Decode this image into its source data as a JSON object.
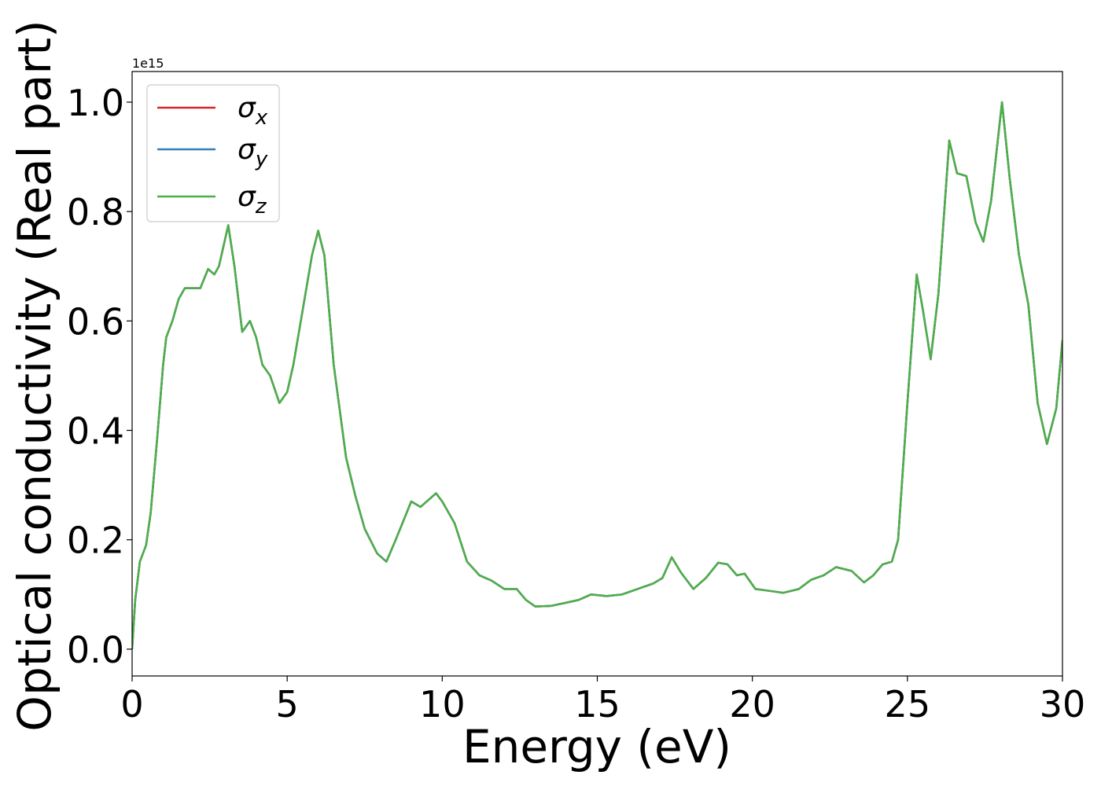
{
  "chart_data": {
    "type": "line",
    "x_label": "Energy (eV)",
    "y_label": "Optical conductivity (Real part)",
    "y_offset_label": "1e15",
    "x": [
      0,
      0.1,
      0.25,
      0.45,
      0.6,
      0.8,
      1.0,
      1.1,
      1.3,
      1.5,
      1.7,
      2.0,
      2.2,
      2.45,
      2.65,
      2.8,
      3.1,
      3.3,
      3.55,
      3.8,
      4.0,
      4.2,
      4.45,
      4.75,
      5.0,
      5.2,
      5.5,
      5.8,
      6.0,
      6.2,
      6.5,
      6.9,
      7.2,
      7.5,
      7.9,
      8.2,
      8.5,
      9.0,
      9.3,
      9.5,
      9.8,
      10.0,
      10.4,
      10.8,
      11.2,
      11.6,
      12.0,
      12.4,
      12.7,
      13.0,
      13.5,
      14.0,
      14.4,
      14.8,
      15.3,
      15.8,
      16.3,
      16.8,
      17.1,
      17.4,
      17.7,
      18.1,
      18.5,
      18.9,
      19.2,
      19.5,
      19.75,
      20.1,
      20.5,
      21.0,
      21.5,
      21.9,
      22.3,
      22.7,
      23.2,
      23.6,
      23.9,
      24.2,
      24.5,
      24.7,
      25.0,
      25.3,
      25.5,
      25.75,
      26.0,
      26.35,
      26.6,
      26.9,
      27.2,
      27.45,
      27.7,
      28.05,
      28.3,
      28.6,
      28.9,
      29.2,
      29.5,
      29.8,
      30.0
    ],
    "series": [
      {
        "name": "σx",
        "color": "#d62728",
        "values": [
          0,
          0.09,
          0.16,
          0.19,
          0.25,
          0.38,
          0.52,
          0.57,
          0.6,
          0.64,
          0.66,
          0.66,
          0.66,
          0.695,
          0.685,
          0.7,
          0.775,
          0.7,
          0.58,
          0.6,
          0.57,
          0.52,
          0.5,
          0.45,
          0.47,
          0.52,
          0.62,
          0.72,
          0.765,
          0.72,
          0.52,
          0.35,
          0.28,
          0.22,
          0.175,
          0.16,
          0.2,
          0.27,
          0.26,
          0.27,
          0.285,
          0.27,
          0.23,
          0.16,
          0.135,
          0.125,
          0.11,
          0.11,
          0.09,
          0.078,
          0.079,
          0.085,
          0.09,
          0.1,
          0.097,
          0.1,
          0.11,
          0.12,
          0.13,
          0.168,
          0.14,
          0.11,
          0.13,
          0.158,
          0.155,
          0.135,
          0.138,
          0.11,
          0.107,
          0.103,
          0.11,
          0.127,
          0.135,
          0.15,
          0.143,
          0.122,
          0.135,
          0.155,
          0.16,
          0.2,
          0.45,
          0.685,
          0.62,
          0.53,
          0.65,
          0.93,
          0.87,
          0.865,
          0.78,
          0.745,
          0.82,
          1.0,
          0.86,
          0.72,
          0.63,
          0.45,
          0.375,
          0.44,
          0.565
        ]
      },
      {
        "name": "σy",
        "color": "#377eb8",
        "values": [
          0,
          0.09,
          0.16,
          0.19,
          0.25,
          0.38,
          0.52,
          0.57,
          0.6,
          0.64,
          0.66,
          0.66,
          0.66,
          0.695,
          0.685,
          0.7,
          0.775,
          0.7,
          0.58,
          0.6,
          0.57,
          0.52,
          0.5,
          0.45,
          0.47,
          0.52,
          0.62,
          0.72,
          0.765,
          0.72,
          0.52,
          0.35,
          0.28,
          0.22,
          0.175,
          0.16,
          0.2,
          0.27,
          0.26,
          0.27,
          0.285,
          0.27,
          0.23,
          0.16,
          0.135,
          0.125,
          0.11,
          0.11,
          0.09,
          0.078,
          0.079,
          0.085,
          0.09,
          0.1,
          0.097,
          0.1,
          0.11,
          0.12,
          0.13,
          0.168,
          0.14,
          0.11,
          0.13,
          0.158,
          0.155,
          0.135,
          0.138,
          0.11,
          0.107,
          0.103,
          0.11,
          0.127,
          0.135,
          0.15,
          0.143,
          0.122,
          0.135,
          0.155,
          0.16,
          0.2,
          0.45,
          0.685,
          0.62,
          0.53,
          0.65,
          0.93,
          0.87,
          0.865,
          0.78,
          0.745,
          0.82,
          1.0,
          0.86,
          0.72,
          0.63,
          0.45,
          0.375,
          0.44,
          0.565
        ]
      },
      {
        "name": "σz",
        "color": "#4daf4a",
        "values": [
          0,
          0.09,
          0.16,
          0.19,
          0.25,
          0.38,
          0.52,
          0.57,
          0.6,
          0.64,
          0.66,
          0.66,
          0.66,
          0.695,
          0.685,
          0.7,
          0.775,
          0.7,
          0.58,
          0.6,
          0.57,
          0.52,
          0.5,
          0.45,
          0.47,
          0.52,
          0.62,
          0.72,
          0.765,
          0.72,
          0.52,
          0.35,
          0.28,
          0.22,
          0.175,
          0.16,
          0.2,
          0.27,
          0.26,
          0.27,
          0.285,
          0.27,
          0.23,
          0.16,
          0.135,
          0.125,
          0.11,
          0.11,
          0.09,
          0.078,
          0.079,
          0.085,
          0.09,
          0.1,
          0.097,
          0.1,
          0.11,
          0.12,
          0.13,
          0.168,
          0.14,
          0.11,
          0.13,
          0.158,
          0.155,
          0.135,
          0.138,
          0.11,
          0.107,
          0.103,
          0.11,
          0.127,
          0.135,
          0.15,
          0.143,
          0.122,
          0.135,
          0.155,
          0.16,
          0.2,
          0.45,
          0.685,
          0.62,
          0.53,
          0.65,
          0.93,
          0.87,
          0.865,
          0.78,
          0.745,
          0.82,
          1.0,
          0.86,
          0.72,
          0.63,
          0.45,
          0.375,
          0.44,
          0.565
        ]
      }
    ],
    "xlim": [
      0,
      30
    ],
    "xticks": [
      0,
      5,
      10,
      15,
      20,
      25,
      30
    ],
    "ylim": [
      -0.049,
      1.056
    ],
    "yticks": [
      {
        "value": 0,
        "label": "0.0"
      },
      0.2,
      0.4,
      0.6,
      0.8,
      {
        "value": 1,
        "label": "1.0"
      }
    ],
    "grid": false,
    "legend": "upper left"
  }
}
